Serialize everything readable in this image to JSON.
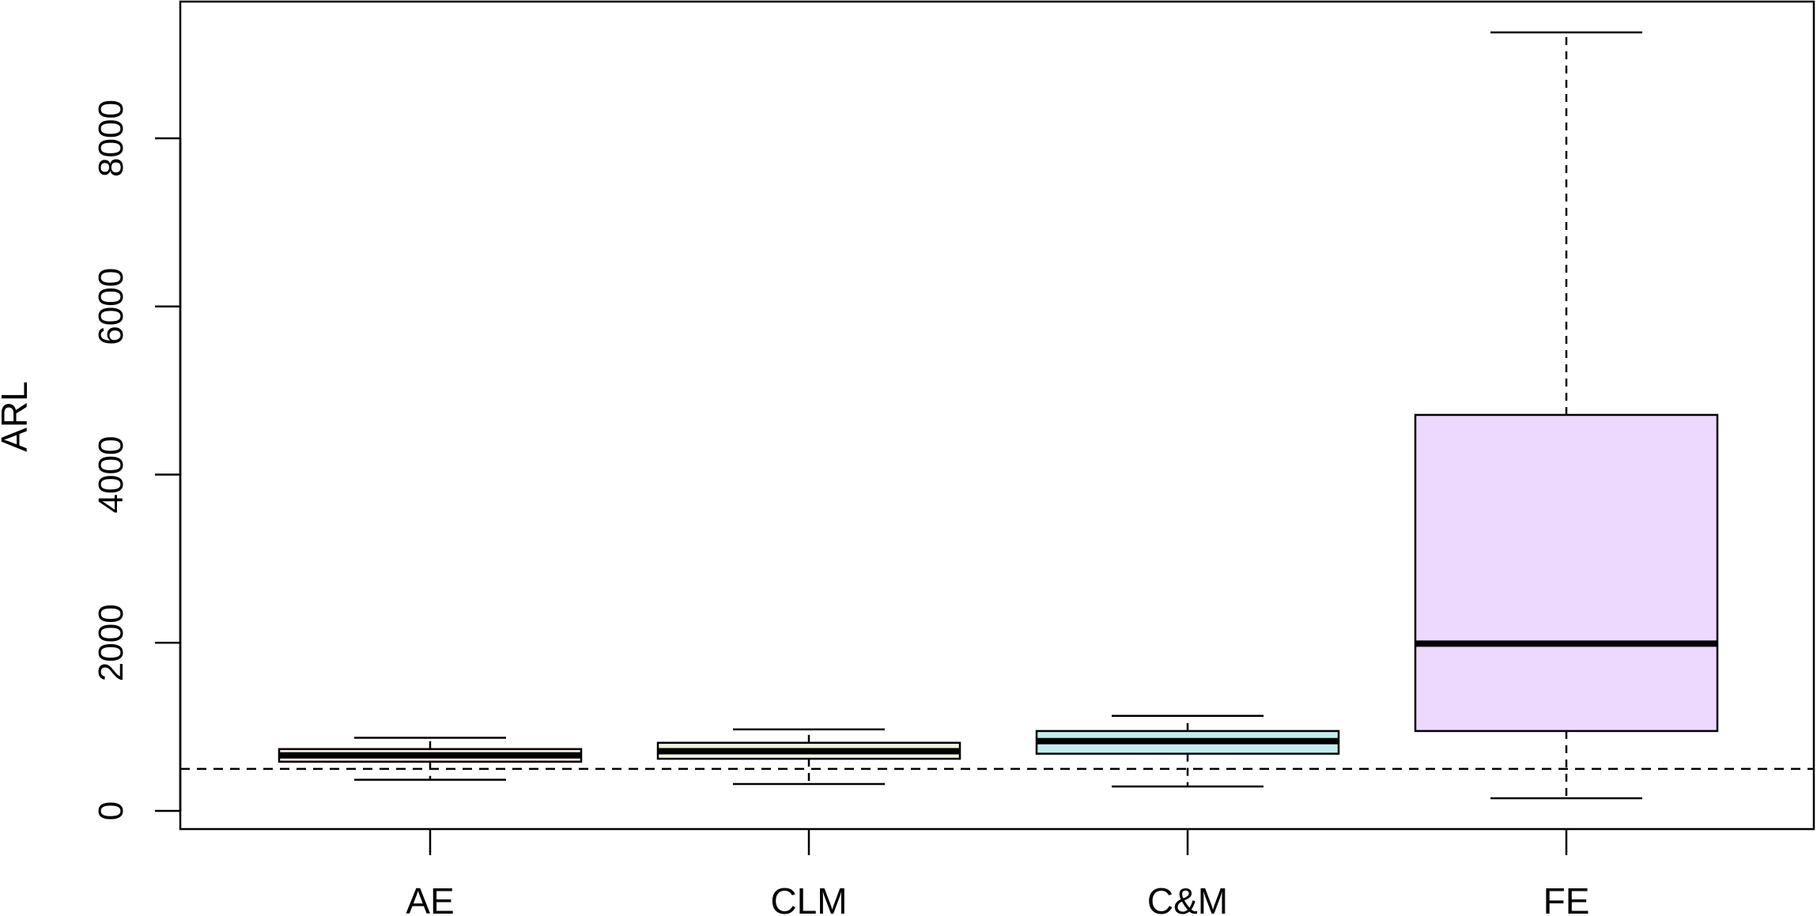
{
  "chart_data": {
    "type": "boxplot",
    "title": "",
    "xlabel": "",
    "ylabel": "ARL",
    "categories": [
      "AE",
      "CLM",
      "C&M",
      "FE"
    ],
    "boxes": [
      {
        "category": "AE",
        "whisker_low": 370,
        "q1": 585,
        "median": 660,
        "q3": 735,
        "whisker_high": 870,
        "fill": "#fbe9e7"
      },
      {
        "category": "CLM",
        "whisker_low": 320,
        "q1": 620,
        "median": 710,
        "q3": 810,
        "whisker_high": 970,
        "fill": "#eef5d9"
      },
      {
        "category": "C&M",
        "whisker_low": 290,
        "q1": 680,
        "median": 830,
        "q3": 950,
        "whisker_high": 1130,
        "fill": "#c2eded"
      },
      {
        "category": "FE",
        "whisker_low": 150,
        "q1": 950,
        "median": 1990,
        "q3": 4710,
        "whisker_high": 9260,
        "fill": "#ecd9fd"
      }
    ],
    "reference_line": {
      "y": 500,
      "style": "dashed"
    },
    "ylim": [
      -200,
      9650
    ],
    "yticks": [
      0,
      2000,
      4000,
      6000,
      8000
    ],
    "grid": false,
    "legend": "none"
  }
}
